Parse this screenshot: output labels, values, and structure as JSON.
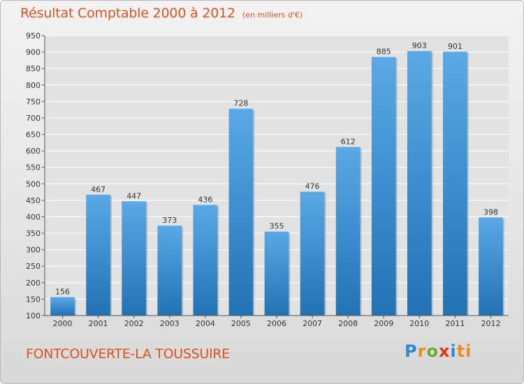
{
  "header": {
    "title": "Résultat Comptable 2000 à 2012",
    "subtitle": "(en milliers d'€)"
  },
  "commune": "FONTCOUVERTE-LA TOUSSUIRE",
  "logo": {
    "text": "Proxiti",
    "letters": [
      "P",
      "r",
      "o",
      "x",
      "i",
      "ti"
    ]
  },
  "chart_data": {
    "type": "bar",
    "categories": [
      "2000",
      "2001",
      "2002",
      "2003",
      "2004",
      "2005",
      "2006",
      "2007",
      "2008",
      "2009",
      "2010",
      "2011",
      "2012"
    ],
    "values": [
      156,
      467,
      447,
      373,
      436,
      728,
      355,
      476,
      612,
      885,
      903,
      901,
      398
    ],
    "title": "Résultat Comptable 2000 à 2012",
    "xlabel": "",
    "ylabel": "",
    "ylim": [
      100,
      950
    ],
    "yticks": [
      100,
      150,
      200,
      250,
      300,
      350,
      400,
      450,
      500,
      550,
      600,
      650,
      700,
      750,
      800,
      850,
      900,
      950
    ],
    "grid": true,
    "bar_color_top": "#5aa9e6",
    "bar_color_bottom": "#2272b4"
  }
}
